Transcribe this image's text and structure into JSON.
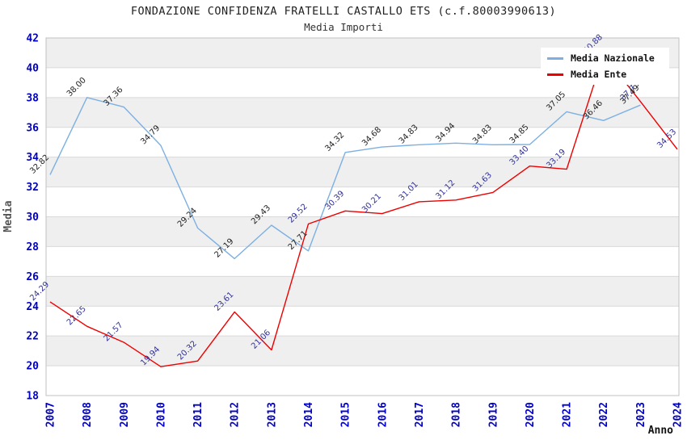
{
  "chart_data": {
    "type": "line",
    "title": "FONDAZIONE CONFIDENZA FRATELLI CASTALLO ETS (c.f.80003990613)",
    "subtitle": "Media Importi",
    "xlabel": "Anno",
    "ylabel": "Media",
    "ylim": [
      18,
      42
    ],
    "ytick_step": 2,
    "grid": "horizontal-bands-alternating",
    "legend_position": "top-right",
    "categories": [
      "2007",
      "2008",
      "2009",
      "2010",
      "2011",
      "2012",
      "2013",
      "2014",
      "2015",
      "2016",
      "2017",
      "2018",
      "2019",
      "2020",
      "2021",
      "2022",
      "2023",
      "2024"
    ],
    "series": [
      {
        "name": "Media Nazionale",
        "line_color": "#7cb0e2",
        "label_color": "#222222",
        "values": [
          32.82,
          38.0,
          37.36,
          34.79,
          29.24,
          27.19,
          29.43,
          27.71,
          34.32,
          34.68,
          34.83,
          34.94,
          34.83,
          34.85,
          37.05,
          36.46,
          37.49,
          null
        ]
      },
      {
        "name": "Media Ente",
        "line_color": "#ee0000",
        "label_color": "#333399",
        "values": [
          24.29,
          22.65,
          21.57,
          19.94,
          20.32,
          23.61,
          21.06,
          29.52,
          30.39,
          30.21,
          31.01,
          31.12,
          31.63,
          33.4,
          33.19,
          40.88,
          37.73,
          34.53
        ]
      }
    ]
  },
  "colors": {
    "tick_text": "#0000cc",
    "band_gray": "#efefef",
    "band_white": "#ffffff",
    "gridline": "#d9d9d9",
    "plot_border": "#c0c0c0",
    "axis_title_y": "#555555",
    "axis_title_x": "#111111"
  }
}
